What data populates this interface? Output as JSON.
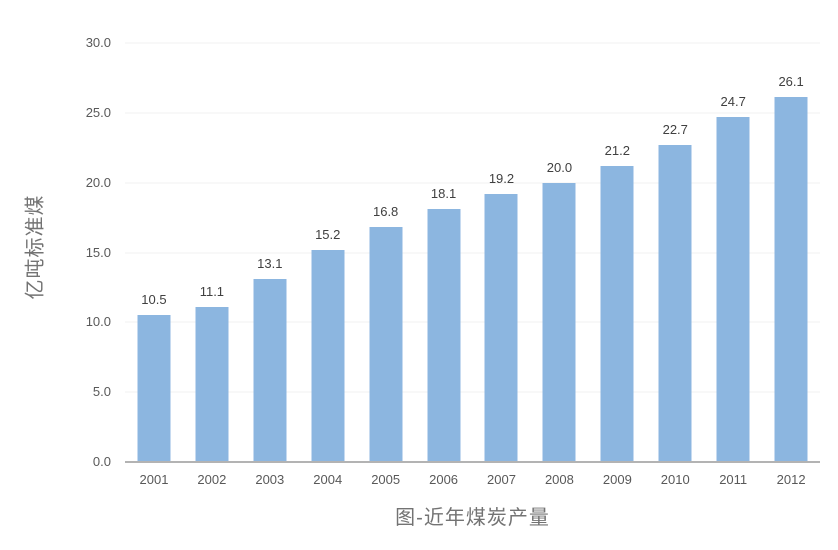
{
  "chart_data": {
    "type": "bar",
    "title": "图-近年煤炭产量",
    "xlabel": "",
    "ylabel": "亿吨标准煤",
    "categories": [
      "2001",
      "2002",
      "2003",
      "2004",
      "2005",
      "2006",
      "2007",
      "2008",
      "2009",
      "2010",
      "2011",
      "2012"
    ],
    "values": [
      10.5,
      11.1,
      13.1,
      15.2,
      16.8,
      18.1,
      19.2,
      20.0,
      21.2,
      22.7,
      24.7,
      26.1
    ],
    "value_labels": [
      "10.5",
      "11.1",
      "13.1",
      "15.2",
      "16.8",
      "18.1",
      "19.2",
      "20.0",
      "21.2",
      "22.7",
      "24.7",
      "26.1"
    ],
    "ylim": [
      0,
      30
    ],
    "ytick_step": 5,
    "ytick_labels": [
      "0.0",
      "5.0",
      "10.0",
      "15.0",
      "20.0",
      "25.0",
      "30.0"
    ],
    "grid": true,
    "legend": "none",
    "colors": {
      "bar_fill": "#8CB6E0",
      "axis_line": "#B3B3B3",
      "gridline": "#F0F0F0",
      "tick_text": "#595959",
      "value_text": "#404040",
      "title_text": "#737373"
    }
  }
}
